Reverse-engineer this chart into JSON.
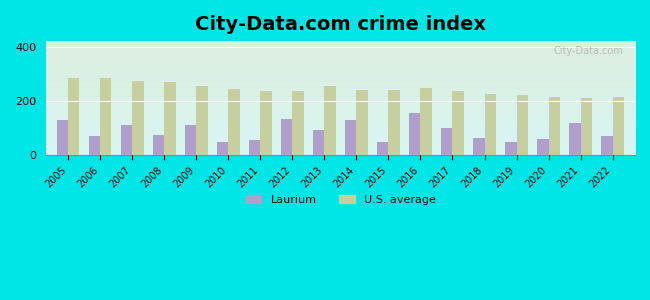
{
  "years": [
    2005,
    2006,
    2007,
    2008,
    2009,
    2010,
    2011,
    2012,
    2013,
    2014,
    2015,
    2016,
    2017,
    2018,
    2019,
    2020,
    2021,
    2022
  ],
  "laurium": [
    130,
    70,
    110,
    75,
    110,
    48,
    58,
    135,
    95,
    130,
    48,
    155,
    100,
    65,
    48,
    60,
    120,
    70
  ],
  "us_average": [
    285,
    285,
    275,
    270,
    255,
    245,
    238,
    235,
    255,
    242,
    242,
    248,
    237,
    225,
    222,
    215,
    212,
    215
  ],
  "title": "City-Data.com crime index",
  "laurium_label": "Laurium",
  "us_label": "U.S. average",
  "laurium_color": "#b09fcc",
  "us_color": "#c8cf9f",
  "bg_outer": "#00e5e5",
  "ylim": [
    0,
    420
  ],
  "yticks": [
    0,
    200,
    400
  ],
  "watermark": "City-Data.com",
  "title_fontsize": 14,
  "gradient_top": "#ddeedd",
  "gradient_bottom": "#d8f5f5"
}
